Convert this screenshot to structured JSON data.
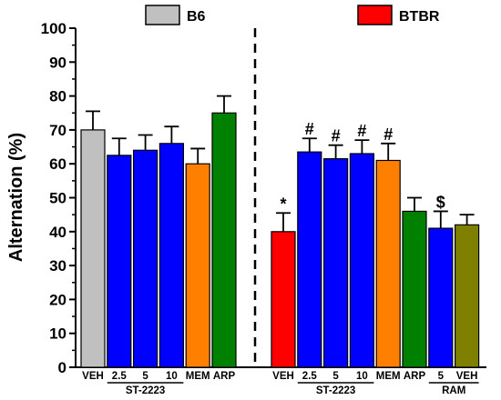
{
  "chart_data": {
    "type": "bar",
    "ylabel": "Alternation (%)",
    "xlabel": "",
    "ylim": [
      0,
      100
    ],
    "yticks": [
      0,
      10,
      20,
      30,
      40,
      50,
      60,
      70,
      80,
      90,
      100
    ],
    "grid": false,
    "legend": {
      "position": "top",
      "entries": [
        {
          "name": "B6",
          "color": "#c0c0c0"
        },
        {
          "name": "BTBR",
          "color": "#ff0000"
        }
      ]
    },
    "panels": [
      {
        "strain": "B6",
        "bars": [
          {
            "label": "VEH",
            "value": 70,
            "error": 5.5,
            "color": "#c0c0c0",
            "sig": ""
          },
          {
            "label": "2.5",
            "value": 62.5,
            "error": 5,
            "color": "#0000ff",
            "sig": ""
          },
          {
            "label": "5",
            "value": 64,
            "error": 4.5,
            "color": "#0000ff",
            "sig": ""
          },
          {
            "label": "10",
            "value": 66,
            "error": 5,
            "color": "#0000ff",
            "sig": ""
          },
          {
            "label": "MEM",
            "value": 60,
            "error": 4.5,
            "color": "#ff8000",
            "sig": ""
          },
          {
            "label": "ARP",
            "value": 75,
            "error": 5,
            "color": "#008000",
            "sig": ""
          }
        ],
        "groups": [
          {
            "label": "ST-2223",
            "from": 1,
            "to": 3
          }
        ]
      },
      {
        "strain": "BTBR",
        "bars": [
          {
            "label": "VEH",
            "value": 40,
            "error": 5.5,
            "color": "#ff0000",
            "sig": "*"
          },
          {
            "label": "2.5",
            "value": 63.5,
            "error": 4,
            "color": "#0000ff",
            "sig": "#"
          },
          {
            "label": "5",
            "value": 61.5,
            "error": 4,
            "color": "#0000ff",
            "sig": "#"
          },
          {
            "label": "10",
            "value": 63,
            "error": 4,
            "color": "#0000ff",
            "sig": "#"
          },
          {
            "label": "MEM",
            "value": 61,
            "error": 5,
            "color": "#ff8000",
            "sig": "#"
          },
          {
            "label": "ARP",
            "value": 46,
            "error": 4,
            "color": "#008000",
            "sig": ""
          },
          {
            "label": "5",
            "value": 41,
            "error": 5,
            "color": "#0000ff",
            "sig": "$"
          },
          {
            "label": "VEH",
            "value": 42,
            "error": 3,
            "color": "#808000",
            "sig": ""
          }
        ],
        "groups": [
          {
            "label": "ST-2223",
            "from": 1,
            "to": 3
          },
          {
            "label": "RAM",
            "from": 6,
            "to": 7
          }
        ]
      }
    ]
  }
}
